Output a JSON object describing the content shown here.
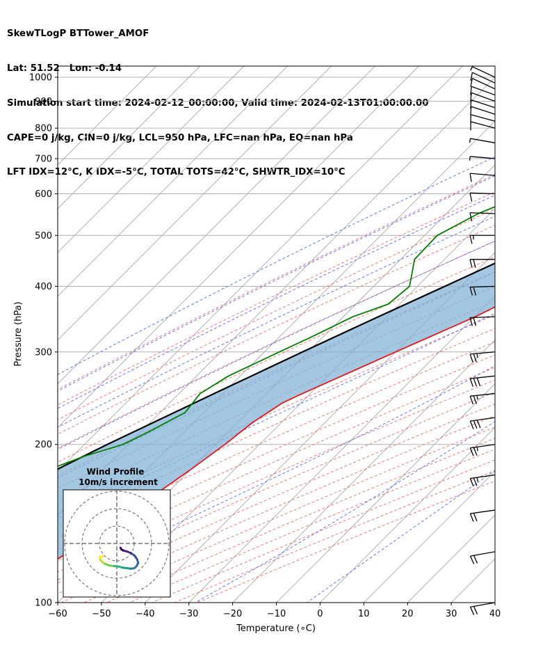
{
  "header": {
    "line1": "SkewTLogP BTTower_AMOF",
    "line2": "Lat: 51.52   Lon: -0.14",
    "line3": "Simulation start time: 2024-02-12_00:00:00, Valid time: 2024-02-13T01:00:00.00",
    "line4": "CAPE=0 j/kg, CIN=0 j/kg, LCL=950 hPa, LFC=nan hPa, EQ=nan hPa",
    "line5": "LFT IDX=12°C, K IDX=-5°C, TOTAL TOTS=42°C, SHWTR_IDX=10°C"
  },
  "inset": {
    "title1": "Wind Profile",
    "title2": "10m/s increment"
  },
  "chart_data": {
    "type": "line",
    "xlabel": "Temperature (∘C)",
    "ylabel": "Pressure (hPa)",
    "xlim": [
      -60,
      40
    ],
    "ylim": [
      1050,
      100
    ],
    "y_scale": "log",
    "grid": true,
    "x_ticks": [
      -60,
      -50,
      -40,
      -30,
      -20,
      -10,
      0,
      10,
      20,
      30,
      40
    ],
    "x_tick_labels": [
      "−60",
      "−50",
      "−40",
      "−30",
      "−20",
      "−10",
      "0",
      "10",
      "20",
      "30",
      "40"
    ],
    "y_ticks": [
      1000,
      900,
      800,
      700,
      600,
      500,
      400,
      300,
      200,
      100
    ],
    "y_tick_labels": [
      "1000",
      "900",
      "800",
      "700",
      "600",
      "500",
      "400",
      "300",
      "200",
      "100"
    ],
    "colors": {
      "temperature": "#e8141a",
      "dewpoint": "#008000",
      "parcel": "#000000",
      "fill": "#7fb1d5",
      "dry_adiabat": "#f26161",
      "moist_adiabat": "#4a5ff0",
      "mixing_ratio": "#9e4fc7",
      "isotherm": "#b0b0b0"
    },
    "series": [
      {
        "key": "temperature",
        "pressure": [
          1000,
          970,
          950,
          900,
          850,
          800,
          750,
          700,
          650,
          600,
          550,
          500,
          450,
          400,
          350,
          300,
          270,
          250,
          240,
          220,
          200,
          180,
          160,
          140,
          120,
          110,
          100
        ],
        "values": [
          6.1,
          6.8,
          5.9,
          3.2,
          1.0,
          -0.5,
          -0.8,
          -1.0,
          -2.3,
          -4.5,
          -7.7,
          -12.0,
          -17.2,
          -22.8,
          -29.8,
          -40.0,
          -46.8,
          -51.8,
          -54.2,
          -56.6,
          -57.9,
          -59.9,
          -62.5,
          -65.7,
          -70.2,
          -73.2,
          -76.7
        ]
      },
      {
        "key": "dewpoint",
        "pressure": [
          1000,
          970,
          950,
          900,
          850,
          800,
          750,
          700,
          650,
          600,
          550,
          500,
          450,
          400,
          370,
          350,
          320,
          300,
          270,
          250,
          230,
          210,
          200,
          190,
          180,
          170,
          150,
          130,
          110,
          100
        ],
        "values": [
          2.8,
          3.1,
          2.4,
          1.3,
          -0.1,
          -4.0,
          -11.3,
          -22.8,
          -42.0,
          -46.2,
          -52.7,
          -57.1,
          -56.8,
          -51.8,
          -52.6,
          -57.8,
          -62.7,
          -66.6,
          -72.7,
          -75.2,
          -74.3,
          -78.5,
          -81.2,
          -87.3,
          -92.0,
          -93.6,
          -94.5,
          -95.2,
          -96.1,
          -97.2
        ]
      },
      {
        "key": "parcel",
        "pressure": [
          1000,
          950,
          900,
          850,
          800,
          750,
          700,
          650,
          600,
          550,
          500,
          450,
          400,
          350,
          300,
          250,
          200,
          150,
          100
        ],
        "values": [
          6.1,
          2.5,
          0.0,
          -2.8,
          -5.7,
          -8.9,
          -12.3,
          -16.0,
          -20.2,
          -24.9,
          -30.3,
          -36.5,
          -43.7,
          -52.0,
          -61.3,
          -72.0,
          -84.8,
          -100.0,
          -121.0
        ]
      }
    ],
    "wind_barbs": {
      "pressure": [
        1000,
        975,
        950,
        925,
        900,
        875,
        850,
        825,
        800,
        750,
        700,
        650,
        600,
        550,
        500,
        450,
        400,
        350,
        300,
        270,
        250,
        225,
        200,
        175,
        150,
        125,
        100
      ],
      "speed_kt": [
        8,
        10,
        12,
        13,
        13,
        12,
        12,
        11,
        11,
        8,
        7,
        12,
        12,
        12,
        18,
        22,
        20,
        22,
        28,
        30,
        28,
        30,
        26,
        28,
        22,
        20,
        22
      ],
      "direction_deg": [
        245,
        245,
        245,
        250,
        250,
        252,
        252,
        255,
        255,
        260,
        265,
        265,
        268,
        268,
        270,
        270,
        272,
        272,
        275,
        276,
        276,
        278,
        278,
        278,
        278,
        280,
        280
      ]
    },
    "hodograph": {
      "u": [
        -2.6,
        -3.3,
        -3.2,
        -2.7,
        -2.2,
        -1.4,
        -0.5,
        0.4,
        1.1,
        1.9,
        2.7,
        3.4,
        3.8,
        4.1,
        3.9,
        3.4,
        2.7,
        1.9,
        1.2,
        0.9,
        0.7
      ],
      "v": [
        -1.1,
        -1.3,
        -1.8,
        -2.3,
        -2.6,
        -2.9,
        -3.0,
        -3.1,
        -3.3,
        -3.4,
        -3.5,
        -3.4,
        -3.0,
        -2.4,
        -1.7,
        -1.0,
        -0.5,
        -0.2,
        0.0,
        0.2,
        0.5
      ],
      "ring_step": 10
    }
  }
}
